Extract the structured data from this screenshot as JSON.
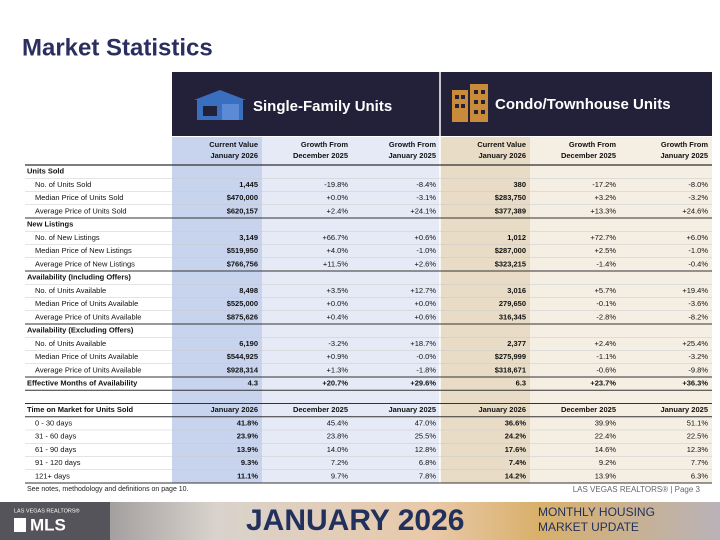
{
  "header": {
    "title": "Market Statistics"
  },
  "table": {
    "groups": [
      "Single-Family Units",
      "Condo/Townhouse Units"
    ],
    "columns": [
      [
        "Current Value",
        "January 2026"
      ],
      [
        "Growth From",
        "December 2025"
      ],
      [
        "Growth From",
        "January 2025"
      ],
      [
        "Current Value",
        "January 2026"
      ],
      [
        "Growth From",
        "December 2025"
      ],
      [
        "Growth From",
        "January 2025"
      ]
    ],
    "sections": [
      {
        "title": "Units Sold",
        "rows": [
          {
            "label": "No. of Units Sold",
            "cells": [
              "1,445",
              "-19.8%",
              "-8.4%",
              "380",
              "-17.2%",
              "-8.0%"
            ]
          },
          {
            "label": "Median Price of Units Sold",
            "cells": [
              "$470,000",
              "+0.0%",
              "-3.1%",
              "$283,750",
              "+3.2%",
              "-3.2%"
            ]
          },
          {
            "label": "Average Price of Units Sold",
            "cells": [
              "$620,157",
              "+2.4%",
              "+24.1%",
              "$377,389",
              "+13.3%",
              "+24.6%"
            ]
          }
        ]
      },
      {
        "title": "New Listings",
        "rows": [
          {
            "label": "No. of New Listings",
            "cells": [
              "3,149",
              "+66.7%",
              "+0.6%",
              "1,012",
              "+72.7%",
              "+6.0%"
            ]
          },
          {
            "label": "Median Price of New Listings",
            "cells": [
              "$519,950",
              "+4.0%",
              "-1.0%",
              "$287,000",
              "+2.5%",
              "-1.0%"
            ]
          },
          {
            "label": "Average Price of New Listings",
            "cells": [
              "$766,756",
              "+11.5%",
              "+2.6%",
              "$323,215",
              "-1.4%",
              "-0.4%"
            ]
          }
        ]
      },
      {
        "title": "Availability (Including Offers)",
        "rows": [
          {
            "label": "No. of Units Available",
            "cells": [
              "8,498",
              "+3.5%",
              "+12.7%",
              "3,016",
              "+5.7%",
              "+19.4%"
            ]
          },
          {
            "label": "Median Price of Units Available",
            "cells": [
              "$525,000",
              "+0.0%",
              "+0.0%",
              "279,650",
              "-0.1%",
              "-3.6%"
            ]
          },
          {
            "label": "Average Price of Units Available",
            "cells": [
              "$875,626",
              "+0.4%",
              "+0.6%",
              "316,345",
              "-2.8%",
              "-8.2%"
            ]
          }
        ]
      },
      {
        "title": "Availability (Excluding Offers)",
        "rows": [
          {
            "label": "No. of Units Available",
            "cells": [
              "6,190",
              "-3.2%",
              "+18.7%",
              "2,377",
              "+2.4%",
              "+25.4%"
            ]
          },
          {
            "label": "Median Price of Units Available",
            "cells": [
              "$544,925",
              "+0.9%",
              "-0.0%",
              "$275,999",
              "-1.1%",
              "-3.2%"
            ]
          },
          {
            "label": "Average Price of Units Available",
            "cells": [
              "$928,314",
              "+1.3%",
              "-1.8%",
              "$318,671",
              "-0.6%",
              "-9.8%"
            ]
          }
        ]
      }
    ],
    "effective": {
      "label": "Effective Months of Availability",
      "cells": [
        "4.3",
        "+20.7%",
        "+29.6%",
        "6.3",
        "+23.7%",
        "+36.3%"
      ]
    },
    "time_on_market": {
      "title": "Time on Market for Units Sold",
      "columns": [
        "January 2026",
        "December 2025",
        "January 2025",
        "January 2026",
        "December 2025",
        "January 2025"
      ],
      "rows": [
        {
          "label": "0 - 30 days",
          "cells": [
            "41.8%",
            "45.4%",
            "47.0%",
            "36.6%",
            "39.9%",
            "51.1%"
          ]
        },
        {
          "label": "31 - 60 days",
          "cells": [
            "23.9%",
            "23.8%",
            "25.5%",
            "24.2%",
            "22.4%",
            "22.5%"
          ]
        },
        {
          "label": "61 - 90 days",
          "cells": [
            "13.9%",
            "14.0%",
            "12.8%",
            "17.6%",
            "14.6%",
            "12.3%"
          ]
        },
        {
          "label": "91 - 120 days",
          "cells": [
            "9.3%",
            "7.2%",
            "6.8%",
            "7.4%",
            "9.2%",
            "7.7%"
          ]
        },
        {
          "label": "121+ days",
          "cells": [
            "11.1%",
            "9.7%",
            "7.8%",
            "14.2%",
            "13.9%",
            "6.3%"
          ]
        }
      ]
    }
  },
  "footer": {
    "note": "See notes, methodology and definitions on page 10.",
    "page": "LAS VEGAS REALTORS® | Page 3"
  },
  "banner": {
    "org": "LAS VEGAS REALTORS®",
    "logo": "MLS",
    "month": "JANUARY 2026",
    "line1": "MONTHLY HOUSING",
    "line2": "MARKET UPDATE"
  }
}
